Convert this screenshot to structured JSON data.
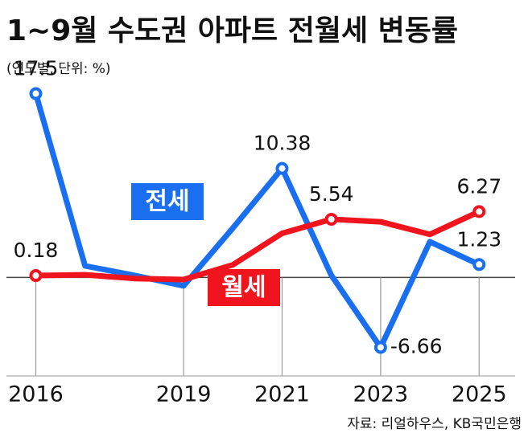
{
  "chart_data": {
    "type": "line",
    "title": "1~9월 수도권 아파트 전월세 변동률",
    "subtitle": "(연도별, 단위: %)",
    "source": "자료: 리얼하우스, KB국민은행",
    "x": [
      2016,
      2017,
      2018,
      2019,
      2020,
      2021,
      2022,
      2023,
      2024,
      2025
    ],
    "xlim": [
      2015.6,
      2025.6
    ],
    "xticks": [
      2016,
      2019,
      2021,
      2023,
      2025
    ],
    "ylim": [
      -8,
      18
    ],
    "series": [
      {
        "name": "전세",
        "color": "#1a6ff0",
        "values": [
          17.5,
          1.1,
          0.2,
          -0.8,
          4.7,
          10.38,
          0.2,
          -6.66,
          3.4,
          1.23
        ],
        "value_labels": [
          "17.5",
          null,
          null,
          null,
          null,
          "10.38",
          null,
          "-6.66",
          null,
          "1.23"
        ]
      },
      {
        "name": "월세",
        "color": "#f0141e",
        "values": [
          0.18,
          0.25,
          -0.1,
          -0.2,
          1.2,
          4.2,
          5.54,
          5.3,
          4.1,
          6.27
        ],
        "value_labels": [
          "0.18",
          null,
          null,
          null,
          null,
          null,
          "5.54",
          null,
          null,
          "6.27"
        ]
      }
    ]
  }
}
